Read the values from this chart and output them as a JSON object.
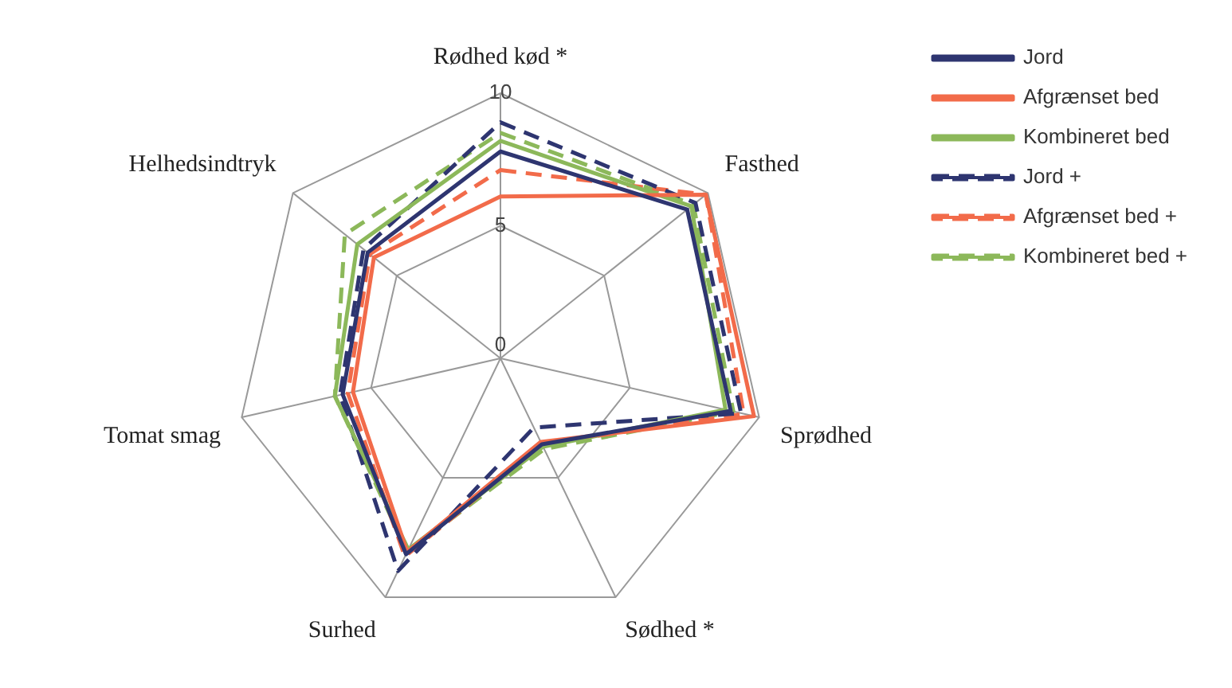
{
  "chart_data": {
    "type": "radar",
    "categories": [
      "Rødhed kød *",
      "Fasthed",
      "Sprødhed",
      "Sødhed *",
      "Surhed",
      "Tomat smag",
      "Helhedsindtryk"
    ],
    "ylim": [
      0,
      10
    ],
    "yticks": [
      0,
      5,
      10
    ],
    "grid": true,
    "legend": "top right",
    "marker": "none",
    "series": [
      {
        "name": "Jord",
        "color": "#2e3570",
        "line_style": "solid",
        "values": [
          7.8,
          9.0,
          8.9,
          3.6,
          8.2,
          6.1,
          6.4
        ]
      },
      {
        "name": "Afgrænset bed",
        "color": "#f26b4a",
        "line_style": "solid",
        "values": [
          6.1,
          9.9,
          9.8,
          3.5,
          8.1,
          5.7,
          6.1
        ]
      },
      {
        "name": "Kombineret bed",
        "color": "#8cb85a",
        "line_style": "solid",
        "values": [
          8.2,
          9.2,
          8.7,
          3.7,
          8.0,
          6.4,
          6.9
        ]
      },
      {
        "name": "Jord +",
        "color": "#2e3570",
        "line_style": "dashed",
        "values": [
          8.9,
          9.4,
          9.3,
          2.9,
          8.9,
          6.2,
          6.6
        ]
      },
      {
        "name": "Afgrænset bed +",
        "color": "#f26b4a",
        "line_style": "dashed",
        "values": [
          7.1,
          9.9,
          9.4,
          3.6,
          8.3,
          5.9,
          6.3
        ]
      },
      {
        "name": "Kombineret bed +",
        "color": "#8cb85a",
        "line_style": "dashed",
        "values": [
          8.5,
          9.3,
          9.0,
          3.8,
          8.1,
          6.4,
          7.5
        ]
      }
    ]
  }
}
